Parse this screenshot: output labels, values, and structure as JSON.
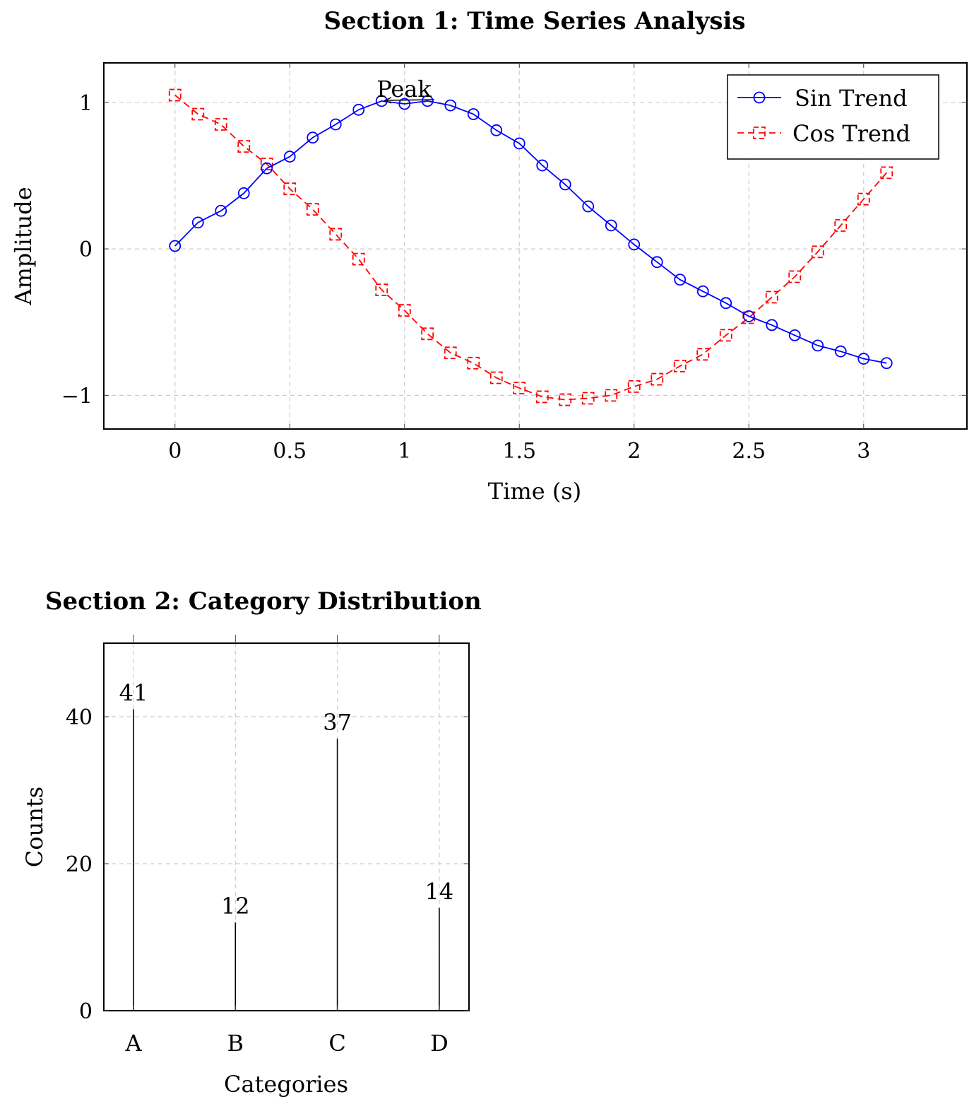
{
  "chart_data": [
    {
      "type": "line",
      "title": "Section 1: Time Series Analysis",
      "xlabel": "Time (s)",
      "ylabel": "Amplitude",
      "xlim": [
        -0.31,
        3.45
      ],
      "ylim": [
        -1.23,
        1.27
      ],
      "xticks": [
        0,
        0.5,
        1,
        1.5,
        2,
        2.5,
        3
      ],
      "xtick_labels": [
        "0",
        "0.5",
        "1",
        "1.5",
        "2",
        "2.5",
        "3"
      ],
      "yticks": [
        -1,
        0,
        1
      ],
      "ytick_labels": [
        "−1",
        "0",
        "1"
      ],
      "grid": true,
      "legend": "top-right",
      "annotation": {
        "text": "Peak",
        "x": 0.91,
        "y": 1.01
      },
      "series": [
        {
          "name": "Sin Trend",
          "color": "#0000ff",
          "marker": "circle",
          "line": "solid",
          "x": [
            0,
            0.1,
            0.2,
            0.3,
            0.4,
            0.5,
            0.6,
            0.7,
            0.8,
            0.9,
            1.0,
            1.1,
            1.2,
            1.3,
            1.4,
            1.5,
            1.6,
            1.7,
            1.8,
            1.9,
            2.0,
            2.1,
            2.2,
            2.3,
            2.4,
            2.5,
            2.6,
            2.7,
            2.8,
            2.9,
            3.0,
            3.1
          ],
          "y": [
            0.02,
            0.18,
            0.26,
            0.38,
            0.55,
            0.63,
            0.76,
            0.85,
            0.95,
            1.01,
            0.99,
            1.01,
            0.98,
            0.92,
            0.81,
            0.72,
            0.57,
            0.44,
            0.29,
            0.16,
            0.03,
            -0.09,
            -0.21,
            -0.29,
            -0.37,
            -0.46,
            -0.52,
            -0.59,
            -0.66,
            -0.7,
            -0.75,
            -0.78
          ]
        },
        {
          "name": "Cos Trend",
          "color": "#ff0000",
          "marker": "square",
          "line": "dashed",
          "x": [
            0,
            0.1,
            0.2,
            0.3,
            0.4,
            0.5,
            0.6,
            0.7,
            0.8,
            0.9,
            1.0,
            1.1,
            1.2,
            1.3,
            1.4,
            1.5,
            1.6,
            1.7,
            1.8,
            1.9,
            2.0,
            2.1,
            2.2,
            2.3,
            2.4,
            2.5,
            2.6,
            2.7,
            2.8,
            2.9,
            3.0,
            3.1
          ],
          "y": [
            1.05,
            0.92,
            0.85,
            0.7,
            0.58,
            0.41,
            0.27,
            0.1,
            -0.07,
            -0.28,
            -0.42,
            -0.58,
            -0.71,
            -0.78,
            -0.88,
            -0.95,
            -1.01,
            -1.03,
            -1.02,
            -1.0,
            -0.94,
            -0.89,
            -0.8,
            -0.72,
            -0.59,
            -0.47,
            -0.33,
            -0.19,
            -0.02,
            0.16,
            0.34,
            0.52
          ]
        }
      ]
    },
    {
      "type": "bar",
      "title": "Section 2: Category Distribution",
      "xlabel": "Categories",
      "ylabel": "Counts",
      "categories": [
        "A",
        "B",
        "C",
        "D"
      ],
      "values": [
        41,
        12,
        37,
        14
      ],
      "value_labels": [
        "41",
        "12",
        "37",
        "14"
      ],
      "ylim": [
        0,
        50
      ],
      "yticks": [
        0,
        20,
        40
      ],
      "ytick_labels": [
        "0",
        "20",
        "40"
      ],
      "grid": true
    }
  ]
}
